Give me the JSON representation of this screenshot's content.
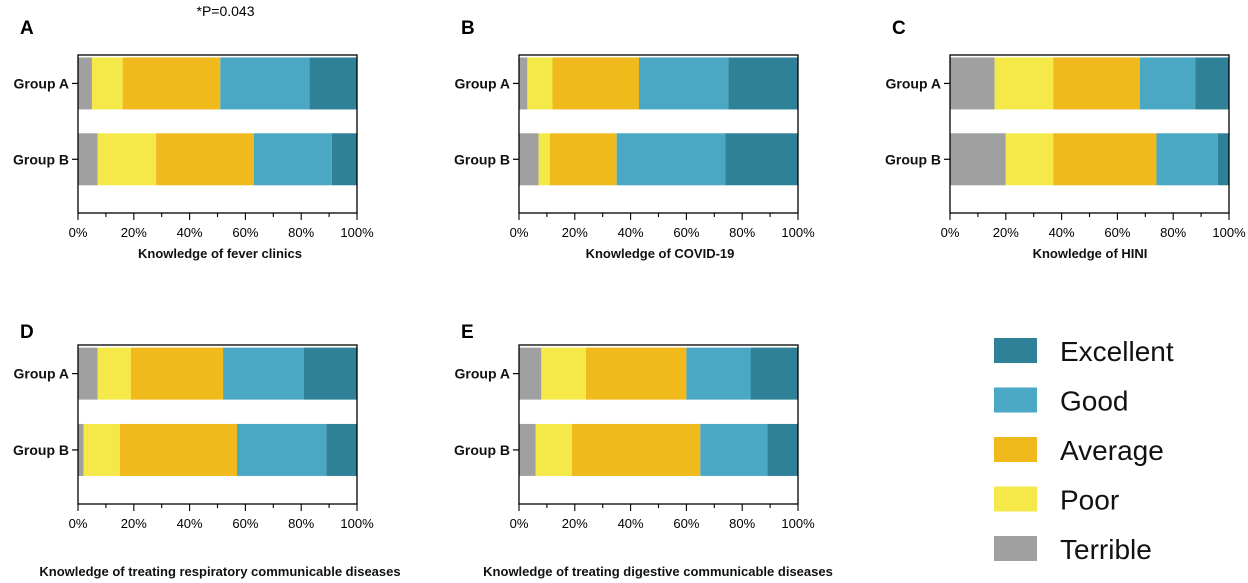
{
  "colors": {
    "Terrible": "#a0a0a0",
    "Poor": "#f5e94a",
    "Average": "#f0ba1c",
    "Good": "#4aa8c5",
    "Excellent": "#2e8196"
  },
  "legend": {
    "items": [
      "Excellent",
      "Good",
      "Average",
      "Poor",
      "Terrible"
    ]
  },
  "chart_data": [
    {
      "type": "bar",
      "stacked": true,
      "orientation": "horizontal",
      "panel": "A",
      "annotation": "*P=0.043",
      "categories": [
        "Group A",
        "Group B"
      ],
      "xlabel": "Knowledge of fever clinics",
      "xlim": [
        0,
        100
      ],
      "xticks": [
        "0%",
        "20%",
        "40%",
        "60%",
        "80%",
        "100%"
      ],
      "series": [
        {
          "name": "Terrible",
          "values": [
            5,
            7
          ]
        },
        {
          "name": "Poor",
          "values": [
            11,
            21
          ]
        },
        {
          "name": "Average",
          "values": [
            35,
            35
          ]
        },
        {
          "name": "Good",
          "values": [
            32,
            28
          ]
        },
        {
          "name": "Excellent",
          "values": [
            17,
            9
          ]
        }
      ]
    },
    {
      "type": "bar",
      "stacked": true,
      "orientation": "horizontal",
      "panel": "B",
      "categories": [
        "Group A",
        "Group B"
      ],
      "xlabel": "Knowledge of COVID-19",
      "xlim": [
        0,
        100
      ],
      "xticks": [
        "0%",
        "20%",
        "40%",
        "60%",
        "80%",
        "100%"
      ],
      "series": [
        {
          "name": "Terrible",
          "values": [
            3,
            7
          ]
        },
        {
          "name": "Poor",
          "values": [
            9,
            4
          ]
        },
        {
          "name": "Average",
          "values": [
            31,
            24
          ]
        },
        {
          "name": "Good",
          "values": [
            32,
            39
          ]
        },
        {
          "name": "Excellent",
          "values": [
            25,
            26
          ]
        }
      ]
    },
    {
      "type": "bar",
      "stacked": true,
      "orientation": "horizontal",
      "panel": "C",
      "categories": [
        "Group A",
        "Group B"
      ],
      "xlabel": "Knowledge of HINI",
      "xlim": [
        0,
        100
      ],
      "xticks": [
        "0%",
        "20%",
        "40%",
        "60%",
        "80%",
        "100%"
      ],
      "series": [
        {
          "name": "Terrible",
          "values": [
            16,
            20
          ]
        },
        {
          "name": "Poor",
          "values": [
            21,
            17
          ]
        },
        {
          "name": "Average",
          "values": [
            31,
            37
          ]
        },
        {
          "name": "Good",
          "values": [
            20,
            22
          ]
        },
        {
          "name": "Excellent",
          "values": [
            12,
            4
          ]
        }
      ]
    },
    {
      "type": "bar",
      "stacked": true,
      "orientation": "horizontal",
      "panel": "D",
      "categories": [
        "Group A",
        "Group B"
      ],
      "xlabel": "Knowledge of treating respiratory communicable diseases",
      "xlim": [
        0,
        100
      ],
      "xticks": [
        "0%",
        "20%",
        "40%",
        "60%",
        "80%",
        "100%"
      ],
      "series": [
        {
          "name": "Terrible",
          "values": [
            7,
            2
          ]
        },
        {
          "name": "Poor",
          "values": [
            12,
            13
          ]
        },
        {
          "name": "Average",
          "values": [
            33,
            42
          ]
        },
        {
          "name": "Good",
          "values": [
            29,
            32
          ]
        },
        {
          "name": "Excellent",
          "values": [
            19,
            11
          ]
        }
      ]
    },
    {
      "type": "bar",
      "stacked": true,
      "orientation": "horizontal",
      "panel": "E",
      "categories": [
        "Group A",
        "Group B"
      ],
      "xlabel": "Knowledge of treating digestive communicable diseases",
      "xlim": [
        0,
        100
      ],
      "xticks": [
        "0%",
        "20%",
        "40%",
        "60%",
        "80%",
        "100%"
      ],
      "series": [
        {
          "name": "Terrible",
          "values": [
            8,
            6
          ]
        },
        {
          "name": "Poor",
          "values": [
            16,
            13
          ]
        },
        {
          "name": "Average",
          "values": [
            36,
            46
          ]
        },
        {
          "name": "Good",
          "values": [
            23,
            24
          ]
        },
        {
          "name": "Excellent",
          "values": [
            17,
            11
          ]
        }
      ]
    }
  ]
}
